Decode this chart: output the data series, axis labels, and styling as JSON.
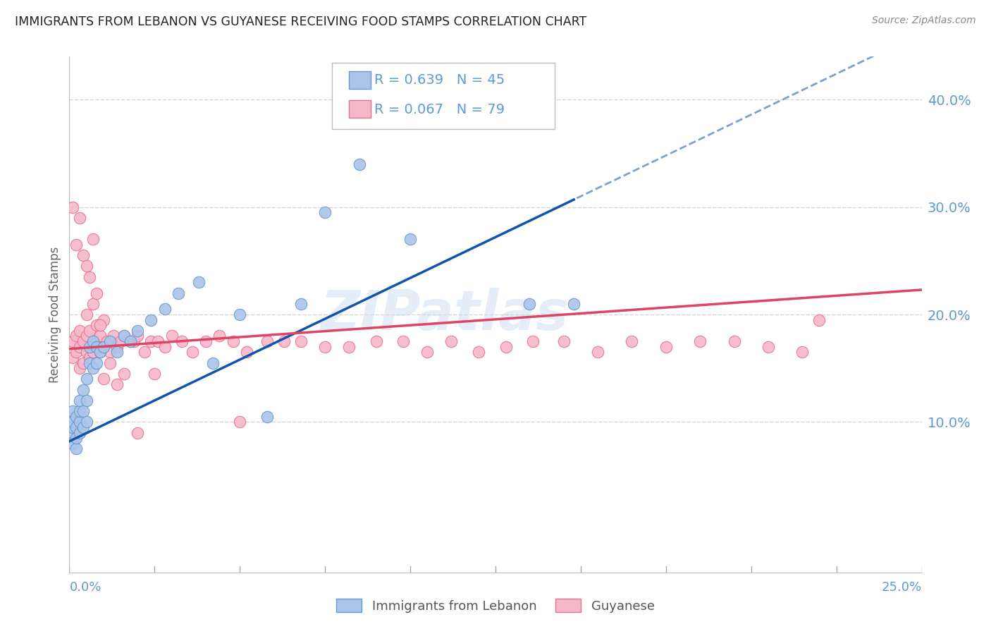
{
  "title": "IMMIGRANTS FROM LEBANON VS GUYANESE RECEIVING FOOD STAMPS CORRELATION CHART",
  "source": "Source: ZipAtlas.com",
  "ylabel": "Receiving Food Stamps",
  "ytick_labels": [
    "10.0%",
    "20.0%",
    "30.0%",
    "40.0%"
  ],
  "ytick_values": [
    0.1,
    0.2,
    0.3,
    0.4
  ],
  "xlim": [
    0.0,
    0.25
  ],
  "ylim": [
    -0.04,
    0.44
  ],
  "label_blue": "Immigrants from Lebanon",
  "label_pink": "Guyanese",
  "blue_color": "#aac4ea",
  "pink_color": "#f5b8ca",
  "blue_edge_color": "#6699cc",
  "pink_edge_color": "#e87090",
  "blue_line_color": "#1155aa",
  "pink_line_color": "#dd4466",
  "axis_color": "#5b9bd5",
  "watermark": "ZIPatlas",
  "grid_color": "#cccccc",
  "background_color": "#ffffff",
  "blue_scatter_x": [
    0.001,
    0.001,
    0.001,
    0.001,
    0.001,
    0.002,
    0.002,
    0.002,
    0.002,
    0.003,
    0.003,
    0.003,
    0.003,
    0.004,
    0.004,
    0.004,
    0.005,
    0.005,
    0.005,
    0.006,
    0.006,
    0.007,
    0.007,
    0.008,
    0.008,
    0.009,
    0.01,
    0.012,
    0.014,
    0.016,
    0.018,
    0.02,
    0.024,
    0.028,
    0.032,
    0.038,
    0.042,
    0.05,
    0.058,
    0.068,
    0.075,
    0.085,
    0.1,
    0.135,
    0.148
  ],
  "blue_scatter_y": [
    0.08,
    0.09,
    0.095,
    0.1,
    0.11,
    0.075,
    0.085,
    0.095,
    0.105,
    0.09,
    0.1,
    0.11,
    0.12,
    0.095,
    0.11,
    0.13,
    0.1,
    0.12,
    0.14,
    0.155,
    0.17,
    0.15,
    0.175,
    0.155,
    0.17,
    0.165,
    0.17,
    0.175,
    0.165,
    0.18,
    0.175,
    0.185,
    0.195,
    0.205,
    0.22,
    0.23,
    0.155,
    0.2,
    0.105,
    0.21,
    0.295,
    0.34,
    0.27,
    0.21,
    0.21
  ],
  "pink_scatter_x": [
    0.001,
    0.001,
    0.002,
    0.002,
    0.003,
    0.003,
    0.003,
    0.004,
    0.004,
    0.005,
    0.005,
    0.005,
    0.006,
    0.006,
    0.007,
    0.007,
    0.008,
    0.008,
    0.009,
    0.009,
    0.01,
    0.01,
    0.011,
    0.012,
    0.013,
    0.014,
    0.015,
    0.016,
    0.018,
    0.019,
    0.02,
    0.022,
    0.024,
    0.026,
    0.028,
    0.03,
    0.033,
    0.036,
    0.04,
    0.044,
    0.048,
    0.052,
    0.058,
    0.063,
    0.068,
    0.075,
    0.082,
    0.09,
    0.098,
    0.105,
    0.112,
    0.12,
    0.128,
    0.136,
    0.145,
    0.155,
    0.165,
    0.175,
    0.185,
    0.195,
    0.205,
    0.215,
    0.22,
    0.001,
    0.002,
    0.003,
    0.004,
    0.005,
    0.006,
    0.007,
    0.008,
    0.009,
    0.01,
    0.012,
    0.014,
    0.016,
    0.02,
    0.025,
    0.05
  ],
  "pink_scatter_y": [
    0.16,
    0.175,
    0.165,
    0.18,
    0.15,
    0.17,
    0.185,
    0.155,
    0.175,
    0.165,
    0.18,
    0.2,
    0.16,
    0.185,
    0.165,
    0.21,
    0.175,
    0.19,
    0.165,
    0.18,
    0.17,
    0.195,
    0.175,
    0.165,
    0.18,
    0.17,
    0.175,
    0.18,
    0.175,
    0.175,
    0.18,
    0.165,
    0.175,
    0.175,
    0.17,
    0.18,
    0.175,
    0.165,
    0.175,
    0.18,
    0.175,
    0.165,
    0.175,
    0.175,
    0.175,
    0.17,
    0.17,
    0.175,
    0.175,
    0.165,
    0.175,
    0.165,
    0.17,
    0.175,
    0.175,
    0.165,
    0.175,
    0.17,
    0.175,
    0.175,
    0.17,
    0.165,
    0.195,
    0.3,
    0.265,
    0.29,
    0.255,
    0.245,
    0.235,
    0.27,
    0.22,
    0.19,
    0.14,
    0.155,
    0.135,
    0.145,
    0.09,
    0.145,
    0.1
  ],
  "blue_line_intercept": 0.082,
  "blue_line_slope": 1.52,
  "pink_line_intercept": 0.168,
  "pink_line_slope": 0.22
}
